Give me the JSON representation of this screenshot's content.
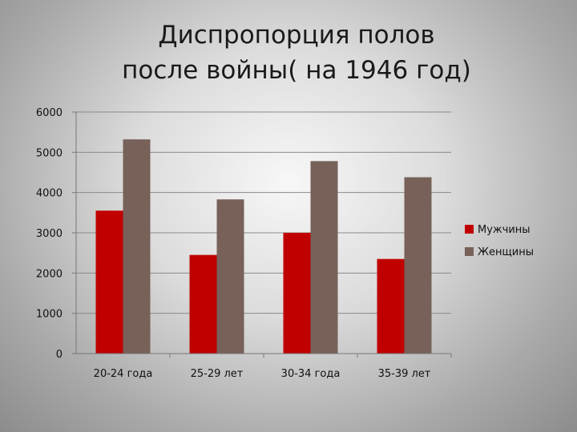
{
  "chart_data": {
    "type": "bar",
    "title_lines": [
      "Диспропорция полов",
      "после войны( на 1946 год)"
    ],
    "categories": [
      "20-24 года",
      "25-29 лет",
      "30-34 года",
      "35-39 лет"
    ],
    "series": [
      {
        "name": "Мужчины",
        "values": [
          3550,
          2450,
          3000,
          2350
        ],
        "color": "#c00000"
      },
      {
        "name": "Женщины",
        "values": [
          5320,
          3830,
          4780,
          4380
        ],
        "color": "#776159"
      }
    ],
    "yticks": [
      0,
      1000,
      2000,
      3000,
      4000,
      5000,
      6000
    ],
    "ylim": [
      0,
      6000
    ],
    "grid": true,
    "legend_position": "right"
  }
}
